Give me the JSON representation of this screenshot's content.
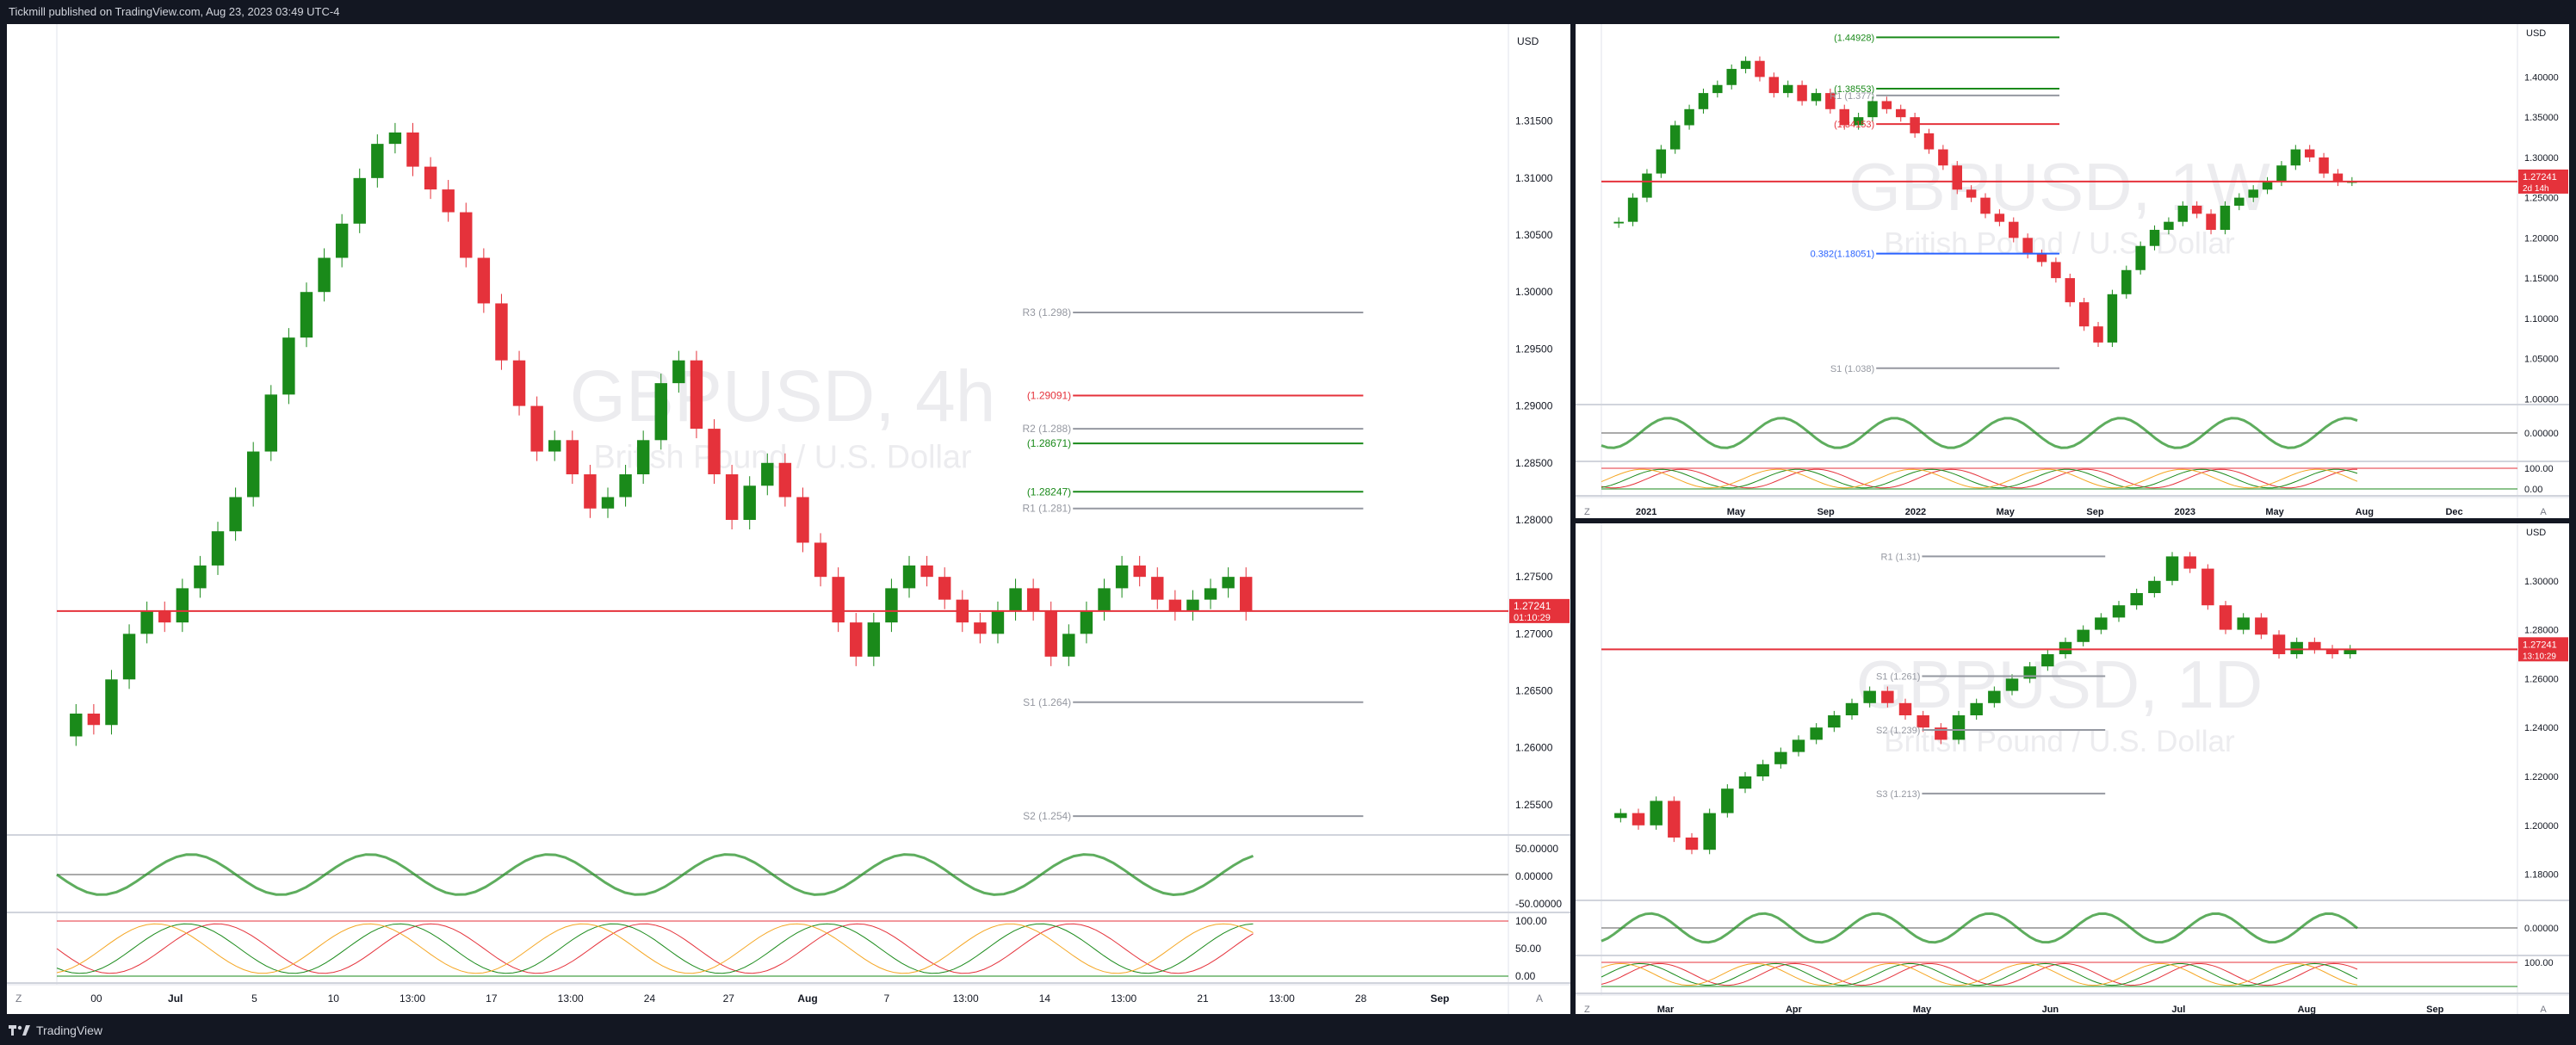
{
  "header": {
    "published": "Tickmill published on TradingView.com, Aug 23, 2023 03:49 UTC-4"
  },
  "footer": {
    "brand": "TradingView"
  },
  "colors": {
    "up": "#1a8a1a",
    "down": "#e5323b",
    "bg": "#ffffff",
    "grid": "#f0f3fa"
  },
  "chart_data": [
    {
      "type": "candlestick",
      "symbol": "GBPUSD, 4h",
      "watermark": "GBPUSD, 4h",
      "subtitle": "British Pound / U.S. Dollar",
      "currency": "USD",
      "y_ticks": [
        "1.31500",
        "1.31000",
        "1.30500",
        "1.30000",
        "1.29500",
        "1.29000",
        "1.28500",
        "1.28000",
        "1.27500",
        "1.27000",
        "1.26500",
        "1.26000",
        "1.25500"
      ],
      "x_ticks": [
        "00",
        "Jul",
        "5",
        "10",
        "13:00",
        "17",
        "13:00",
        "24",
        "27",
        "Aug",
        "7",
        "13:00",
        "14",
        "13:00",
        "21",
        "13:00",
        "28",
        "Sep"
      ],
      "ylim": [
        1.2525,
        1.322
      ],
      "price_label": "1.27241",
      "countdown": "01:10:29",
      "levels": [
        {
          "label": "R3 (1.298)",
          "value": 1.2982,
          "color": "#9598a1"
        },
        {
          "label": "(1.29091)",
          "value": 1.29091,
          "color": "#e5323b"
        },
        {
          "label": "R2 (1.288)",
          "value": 1.288,
          "color": "#9598a1"
        },
        {
          "label": "(1.28671)",
          "value": 1.28671,
          "color": "#1a8a1a"
        },
        {
          "label": "(1.28247)",
          "value": 1.28247,
          "color": "#1a8a1a"
        },
        {
          "label": "R1 (1.281)",
          "value": 1.281,
          "color": "#9598a1"
        },
        {
          "label": "S1 (1.264)",
          "value": 1.264,
          "color": "#9598a1"
        },
        {
          "label": "S2 (1.254)",
          "value": 1.254,
          "color": "#9598a1"
        }
      ],
      "osc1_ticks": [
        "50.00000",
        "0.00000",
        "-50.00000"
      ],
      "osc2_ticks": [
        "100.00",
        "50.00",
        "0.00"
      ],
      "series_close": [
        1.263,
        1.262,
        1.266,
        1.27,
        1.272,
        1.271,
        1.274,
        1.276,
        1.279,
        1.282,
        1.286,
        1.291,
        1.296,
        1.3,
        1.303,
        1.306,
        1.31,
        1.313,
        1.314,
        1.311,
        1.309,
        1.307,
        1.303,
        1.299,
        1.294,
        1.29,
        1.286,
        1.287,
        1.284,
        1.281,
        1.282,
        1.284,
        1.287,
        1.292,
        1.294,
        1.288,
        1.284,
        1.28,
        1.283,
        1.285,
        1.282,
        1.278,
        1.275,
        1.271,
        1.268,
        1.271,
        1.274,
        1.276,
        1.275,
        1.273,
        1.271,
        1.27,
        1.272,
        1.274,
        1.272,
        1.268,
        1.27,
        1.272,
        1.274,
        1.276,
        1.275,
        1.273,
        1.272,
        1.273,
        1.274,
        1.275,
        1.272
      ]
    },
    {
      "type": "candlestick",
      "symbol": "GBPUSD, 1W",
      "watermark": "GBPUSD, 1W",
      "subtitle": "British Pound / U.S. Dollar",
      "currency": "USD",
      "y_ticks": [
        "1.40000",
        "1.35000",
        "1.30000",
        "1.25000",
        "1.20000",
        "1.15000",
        "1.10000",
        "1.05000",
        "1.00000"
      ],
      "x_ticks": [
        "2021",
        "May",
        "Sep",
        "2022",
        "May",
        "Sep",
        "2023",
        "May",
        "Aug",
        "Dec"
      ],
      "ylim": [
        0.995,
        1.455
      ],
      "price_label": "1.27241",
      "countdown": "2d 14h",
      "levels": [
        {
          "label": "(1.44928)",
          "value": 1.44928,
          "color": "#1a8a1a"
        },
        {
          "label": "(1.38553)",
          "value": 1.38553,
          "color": "#1a8a1a"
        },
        {
          "label": "R1 (1.377)",
          "value": 1.377,
          "color": "#9598a1"
        },
        {
          "label": "(1.34153)",
          "value": 1.34153,
          "color": "#e5323b"
        },
        {
          "label": "0.382(1.18051)",
          "value": 1.18051,
          "color": "#2962ff"
        },
        {
          "label": "S1 (1.038)",
          "value": 1.038,
          "color": "#9598a1"
        }
      ],
      "osc1_ticks": [
        "0.00000"
      ],
      "osc2_ticks": [
        "100.00",
        "0.00"
      ],
      "series_close": [
        1.22,
        1.25,
        1.28,
        1.31,
        1.34,
        1.36,
        1.38,
        1.39,
        1.41,
        1.42,
        1.4,
        1.38,
        1.39,
        1.37,
        1.38,
        1.36,
        1.34,
        1.35,
        1.37,
        1.36,
        1.35,
        1.33,
        1.31,
        1.29,
        1.26,
        1.25,
        1.23,
        1.22,
        1.2,
        1.18,
        1.17,
        1.15,
        1.12,
        1.09,
        1.07,
        1.13,
        1.16,
        1.19,
        1.21,
        1.22,
        1.24,
        1.23,
        1.21,
        1.24,
        1.25,
        1.26,
        1.27,
        1.29,
        1.31,
        1.3,
        1.28,
        1.27,
        1.27
      ]
    },
    {
      "type": "candlestick",
      "symbol": "GBPUSD, 1D",
      "watermark": "GBPUSD, 1D",
      "subtitle": "British Pound / U.S. Dollar",
      "currency": "USD",
      "y_ticks": [
        "1.30000",
        "1.28000",
        "1.26000",
        "1.24000",
        "1.22000",
        "1.20000",
        "1.18000"
      ],
      "x_ticks": [
        "Mar",
        "Apr",
        "May",
        "Jun",
        "Jul",
        "Aug",
        "Sep"
      ],
      "ylim": [
        1.17,
        1.32
      ],
      "price_label": "1.27241",
      "countdown": "13:10:29",
      "levels": [
        {
          "label": "R1 (1.31)",
          "value": 1.31,
          "color": "#9598a1"
        },
        {
          "label": "S1 (1.261)",
          "value": 1.261,
          "color": "#9598a1"
        },
        {
          "label": "S2 (1.239)",
          "value": 1.239,
          "color": "#9598a1"
        },
        {
          "label": "S3 (1.213)",
          "value": 1.213,
          "color": "#9598a1"
        }
      ],
      "osc1_ticks": [
        "0.00000"
      ],
      "osc2_ticks": [
        "100.00"
      ],
      "series_close": [
        1.205,
        1.2,
        1.21,
        1.195,
        1.19,
        1.205,
        1.215,
        1.22,
        1.225,
        1.23,
        1.235,
        1.24,
        1.245,
        1.25,
        1.255,
        1.25,
        1.245,
        1.24,
        1.235,
        1.245,
        1.25,
        1.255,
        1.26,
        1.265,
        1.27,
        1.275,
        1.28,
        1.285,
        1.29,
        1.295,
        1.3,
        1.31,
        1.305,
        1.29,
        1.28,
        1.285,
        1.278,
        1.27,
        1.275,
        1.272,
        1.27,
        1.272
      ]
    }
  ]
}
